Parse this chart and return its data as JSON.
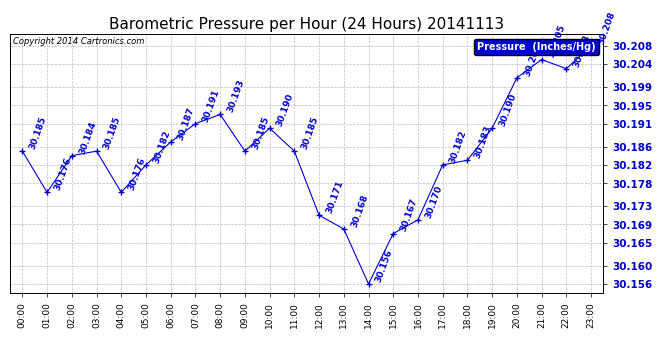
{
  "title": "Barometric Pressure per Hour (24 Hours) 20141113",
  "copyright": "Copyright 2014 Cartronics.com",
  "legend_label": "Pressure  (Inches/Hg)",
  "hours": [
    0,
    1,
    2,
    3,
    4,
    5,
    6,
    7,
    8,
    9,
    10,
    11,
    12,
    13,
    14,
    15,
    16,
    17,
    18,
    19,
    20,
    21,
    22,
    23
  ],
  "hour_labels": [
    "00:00",
    "01:00",
    "02:00",
    "03:00",
    "04:00",
    "05:00",
    "06:00",
    "07:00",
    "08:00",
    "09:00",
    "10:00",
    "11:00",
    "12:00",
    "13:00",
    "14:00",
    "15:00",
    "16:00",
    "17:00",
    "18:00",
    "19:00",
    "20:00",
    "21:00",
    "22:00",
    "23:00"
  ],
  "values": [
    30.185,
    30.176,
    30.184,
    30.185,
    30.176,
    30.182,
    30.187,
    30.191,
    30.193,
    30.185,
    30.19,
    30.185,
    30.171,
    30.168,
    30.156,
    30.167,
    30.17,
    30.182,
    30.183,
    30.19,
    30.201,
    30.205,
    30.203,
    30.208
  ],
  "ylim": [
    30.154,
    30.2105
  ],
  "yticks": [
    30.156,
    30.16,
    30.165,
    30.169,
    30.173,
    30.178,
    30.182,
    30.186,
    30.191,
    30.195,
    30.199,
    30.204,
    30.208
  ],
  "line_color": "#0000cc",
  "marker_color": "#0000cc",
  "bg_color": "#ffffff",
  "grid_color": "#aaaaaa",
  "title_fontsize": 11,
  "annotation_fontsize": 6.5,
  "legend_bg": "#0000cc",
  "legend_fg": "#ffffff",
  "tick_color": "#0000cc"
}
